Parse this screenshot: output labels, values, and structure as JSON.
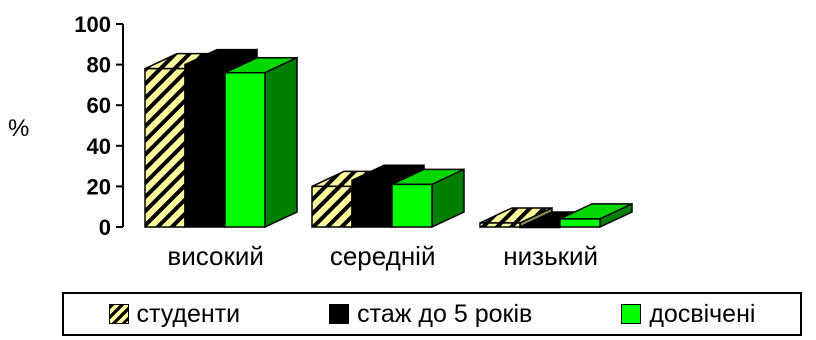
{
  "chart_data": {
    "type": "bar",
    "style": "3d-clustered",
    "categories": [
      "високий",
      "середній",
      "низький"
    ],
    "series": [
      {
        "name": "студенти",
        "values": [
          78,
          20,
          2
        ],
        "color": "#fffc9e",
        "pattern": "hatched"
      },
      {
        "name": "стаж до 5 років",
        "values": [
          80,
          23,
          0
        ],
        "color": "#000000"
      },
      {
        "name": "досвічені",
        "values": [
          76,
          21,
          4
        ],
        "color": "#00ff00",
        "side_color": "#008000"
      }
    ],
    "ylabel": "%",
    "ylim": [
      0,
      100
    ],
    "yticks": [
      0,
      20,
      40,
      60,
      80,
      100
    ],
    "grid": false,
    "legend": "bottom"
  }
}
